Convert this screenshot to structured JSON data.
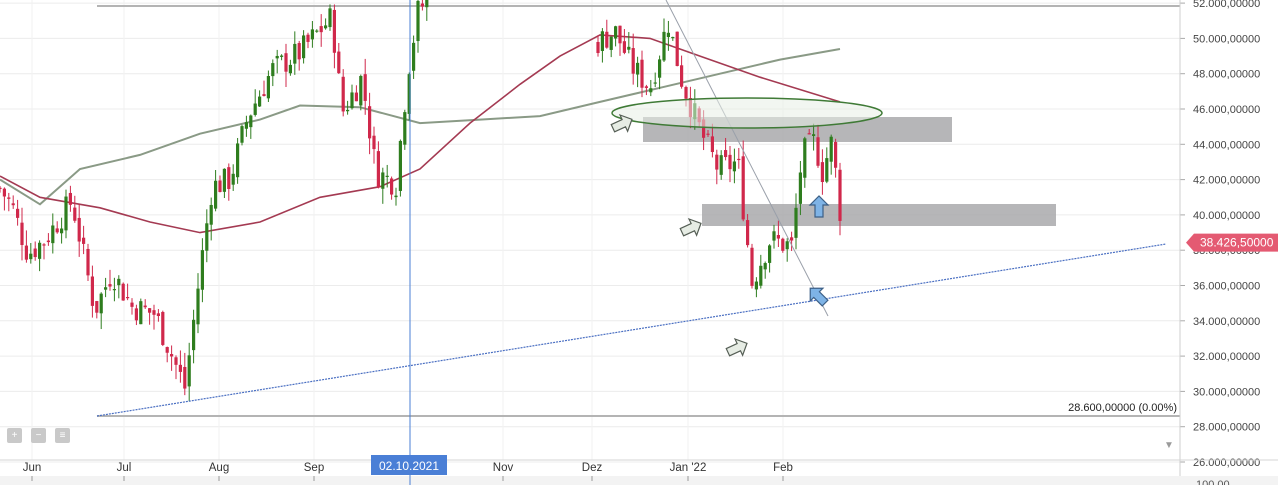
{
  "chart_data": {
    "type": "candlestick",
    "title": "",
    "xlabel": "",
    "ylabel": "",
    "ylim": [
      25.3,
      52.1
    ],
    "y_ticks": [
      "26.000,00000",
      "28.000,00000",
      "30.000,00000",
      "32.000,00000",
      "34.000,00000",
      "36.000,00000",
      "38.000,00000",
      "40.000,00000",
      "42.000,00000",
      "44.000,00000",
      "46.000,00000",
      "48.000,00000",
      "50.000,00000",
      "52.000,00000"
    ],
    "x_ticks": [
      "Jun",
      "Jul",
      "Aug",
      "Sep",
      "Nov",
      "Dez",
      "Jan '22",
      "Feb"
    ],
    "crosshair_date": "02.10.2021",
    "last_price_label": "38.426,50000",
    "fib_label": "28.600,00000 (0.00%)",
    "bottom_partial_label": "100.00",
    "colors": {
      "up": "#2e7d1e",
      "down": "#d0284b",
      "ma_slow": "#8a9a86",
      "ma_fast": "#a43a52",
      "trendline": "#4a6fc2",
      "zone": "#a9a9ab",
      "ellipse": "#3f7a36",
      "price_badge": "#e45a72"
    },
    "grid": true,
    "legend": "none"
  },
  "toolbar": {
    "icons": [
      "zoom-in-icon",
      "zoom-out-icon",
      "reset-icon"
    ]
  }
}
